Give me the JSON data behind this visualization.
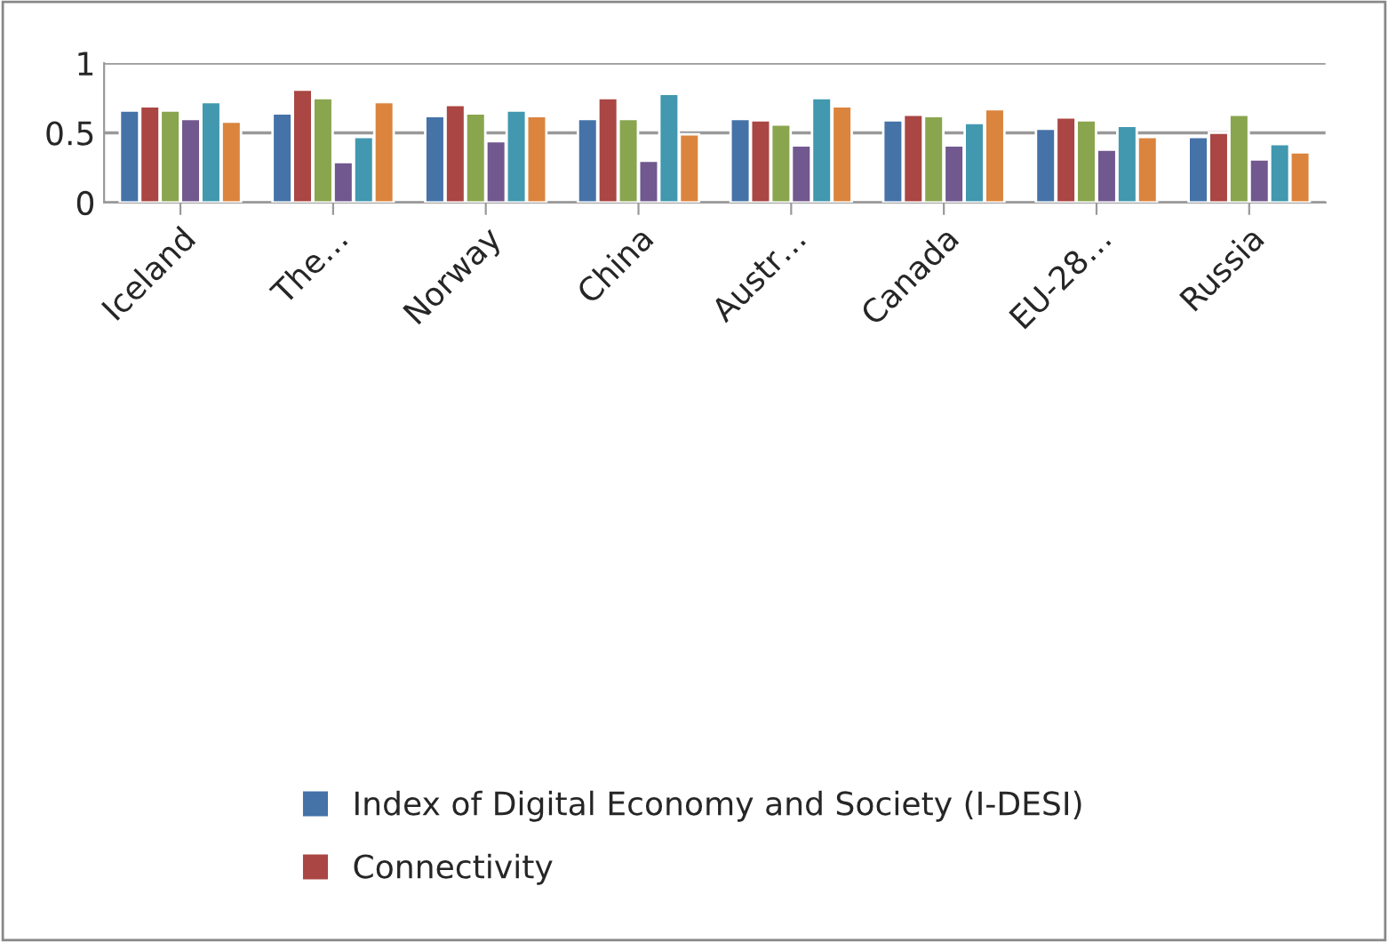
{
  "chart_data": {
    "type": "bar",
    "categories": [
      "Iceland",
      "The…",
      "Norway",
      "China",
      "Austr…",
      "Canada",
      "EU-28…",
      "Russia"
    ],
    "series": [
      {
        "name": "Index of Digital Economy and Society (I-DESI)",
        "color": "#4572a7",
        "values": [
          0.66,
          0.64,
          0.62,
          0.6,
          0.6,
          0.59,
          0.53,
          0.47
        ]
      },
      {
        "name": "Connectivity",
        "color": "#aa4643",
        "values": [
          0.69,
          0.81,
          0.7,
          0.75,
          0.59,
          0.63,
          0.61,
          0.5
        ]
      },
      {
        "color": "#89a54e",
        "values": [
          0.66,
          0.75,
          0.64,
          0.6,
          0.56,
          0.62,
          0.59,
          0.63
        ]
      },
      {
        "color": "#71588f",
        "values": [
          0.6,
          0.29,
          0.44,
          0.3,
          0.41,
          0.41,
          0.38,
          0.31
        ]
      },
      {
        "color": "#4198af",
        "values": [
          0.72,
          0.47,
          0.66,
          0.78,
          0.75,
          0.57,
          0.55,
          0.42
        ]
      },
      {
        "color": "#db843d",
        "values": [
          0.58,
          0.72,
          0.62,
          0.49,
          0.69,
          0.67,
          0.47,
          0.36
        ]
      }
    ],
    "ylim": [
      0,
      1
    ],
    "yticks": [
      0,
      0.5,
      1
    ],
    "grid": "y",
    "legend": "bottom"
  }
}
